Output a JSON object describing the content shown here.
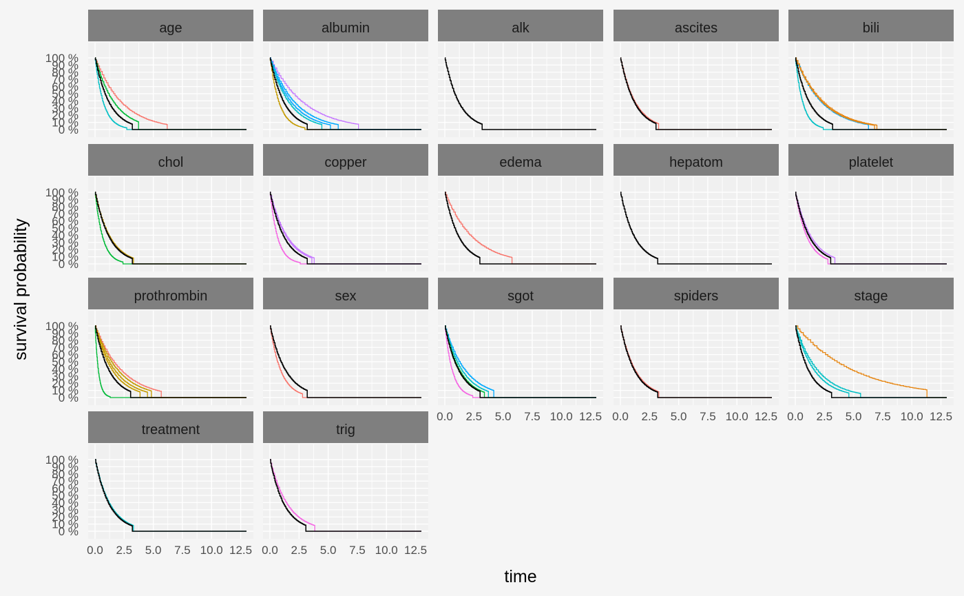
{
  "chart_data": {
    "type": "line",
    "subtype": "stepped survival curves, faceted by variable",
    "xlabel": "time",
    "ylabel": "survival probability",
    "xlim": [
      0,
      13
    ],
    "ylim": [
      0,
      1
    ],
    "x_ticks": [
      "0.0",
      "2.5",
      "5.0",
      "7.5",
      "10.0",
      "12.5"
    ],
    "y_ticks": [
      "0 %",
      "10 %",
      "20 %",
      "30 %",
      "40 %",
      "50 %",
      "60 %",
      "70 %",
      "80 %",
      "90 %",
      "100 %"
    ],
    "grid": true,
    "legend": "none",
    "colors": {
      "background": "#f5f5f5",
      "panel": "#f0f0f0",
      "grid": "#ffffff",
      "strip": "#7f7f7f",
      "baseline": "#000000"
    },
    "facets": [
      {
        "label": "age",
        "curves": [
          {
            "color": "#000000",
            "x50": 0.85,
            "end": 3.2
          },
          {
            "color": "#f8766d",
            "x50": 1.6,
            "end": 6.2
          },
          {
            "color": "#00ba38",
            "x50": 1.15,
            "end": 4.0
          },
          {
            "color": "#00bfc4",
            "x50": 0.5,
            "end": 2.8
          }
        ]
      },
      {
        "label": "albumin",
        "curves": [
          {
            "color": "#000000",
            "x50": 0.85,
            "end": 3.2
          },
          {
            "color": "#c49a00",
            "x50": 0.55,
            "end": 3.0
          },
          {
            "color": "#c77cff",
            "x50": 2.0,
            "end": 7.6
          },
          {
            "color": "#00a9ff",
            "x50": 1.5,
            "end": 6.0
          },
          {
            "color": "#00a9ff",
            "x50": 1.3,
            "end": 5.2
          },
          {
            "color": "#00bfc4",
            "x50": 1.15,
            "end": 4.6
          }
        ]
      },
      {
        "label": "alk",
        "curves": [
          {
            "color": "#000000",
            "x50": 0.85,
            "end": 3.2
          }
        ]
      },
      {
        "label": "ascites",
        "curves": [
          {
            "color": "#000000",
            "x50": 0.85,
            "end": 3.2
          },
          {
            "color": "#f8766d",
            "x50": 0.9,
            "end": 3.3
          }
        ]
      },
      {
        "label": "bili",
        "curves": [
          {
            "color": "#000000",
            "x50": 0.85,
            "end": 3.2
          },
          {
            "color": "#00bfc4",
            "x50": 0.45,
            "end": 2.4
          },
          {
            "color": "#00a9ff",
            "x50": 1.6,
            "end": 6.6
          },
          {
            "color": "#e68613",
            "x50": 1.65,
            "end": 6.8
          },
          {
            "color": "#e68613",
            "x50": 1.72,
            "end": 7.0
          }
        ]
      },
      {
        "label": "chol",
        "curves": [
          {
            "color": "#000000",
            "x50": 0.85,
            "end": 3.2
          },
          {
            "color": "#00ba38",
            "x50": 0.45,
            "end": 2.4
          },
          {
            "color": "#c49a00",
            "x50": 0.9,
            "end": 3.3
          }
        ]
      },
      {
        "label": "copper",
        "curves": [
          {
            "color": "#000000",
            "x50": 0.85,
            "end": 3.2
          },
          {
            "color": "#f564e3",
            "x50": 0.45,
            "end": 2.6
          },
          {
            "color": "#c77cff",
            "x50": 1.05,
            "end": 3.8
          },
          {
            "color": "#c77cff",
            "x50": 1.0,
            "end": 3.6
          }
        ]
      },
      {
        "label": "edema",
        "curves": [
          {
            "color": "#000000",
            "x50": 0.85,
            "end": 3.2
          },
          {
            "color": "#f8766d",
            "x50": 1.65,
            "end": 6.0
          }
        ]
      },
      {
        "label": "hepatom",
        "curves": [
          {
            "color": "#000000",
            "x50": 0.85,
            "end": 3.2
          }
        ]
      },
      {
        "label": "platelet",
        "curves": [
          {
            "color": "#000000",
            "x50": 0.85,
            "end": 3.2
          },
          {
            "color": "#f564e3",
            "x50": 0.7,
            "end": 2.8
          },
          {
            "color": "#c77cff",
            "x50": 0.95,
            "end": 3.4
          }
        ]
      },
      {
        "label": "prothrombin",
        "curves": [
          {
            "color": "#000000",
            "x50": 0.85,
            "end": 3.2
          },
          {
            "color": "#00ba38",
            "x50": 0.2,
            "end": 1.3
          },
          {
            "color": "#f8766d",
            "x50": 1.6,
            "end": 5.8
          },
          {
            "color": "#c49a00",
            "x50": 1.4,
            "end": 5.0
          },
          {
            "color": "#c49a00",
            "x50": 1.2,
            "end": 4.5
          },
          {
            "color": "#c49a00",
            "x50": 1.05,
            "end": 4.1
          }
        ]
      },
      {
        "label": "sex",
        "curves": [
          {
            "color": "#000000",
            "x50": 0.95,
            "end": 3.4
          },
          {
            "color": "#f8766d",
            "x50": 0.65,
            "end": 2.8
          }
        ]
      },
      {
        "label": "sgot",
        "curves": [
          {
            "color": "#000000",
            "x50": 0.85,
            "end": 3.2
          },
          {
            "color": "#f564e3",
            "x50": 0.45,
            "end": 2.4
          },
          {
            "color": "#00a9ff",
            "x50": 1.25,
            "end": 4.4
          },
          {
            "color": "#00bfc4",
            "x50": 1.05,
            "end": 3.9
          },
          {
            "color": "#00ba38",
            "x50": 0.9,
            "end": 3.4
          }
        ]
      },
      {
        "label": "spiders",
        "curves": [
          {
            "color": "#000000",
            "x50": 0.85,
            "end": 3.2
          },
          {
            "color": "#f8766d",
            "x50": 0.9,
            "end": 3.3
          }
        ]
      },
      {
        "label": "stage",
        "curves": [
          {
            "color": "#000000",
            "x50": 0.8,
            "end": 3.2
          },
          {
            "color": "#00bfc4",
            "x50": 1.35,
            "end": 5.6
          },
          {
            "color": "#00bfc4",
            "x50": 1.15,
            "end": 4.6
          },
          {
            "color": "#e68613",
            "x50": 3.5,
            "end": 11.3
          }
        ]
      },
      {
        "label": "treatment",
        "curves": [
          {
            "color": "#000000",
            "x50": 0.85,
            "end": 3.2
          },
          {
            "color": "#00bfc4",
            "x50": 0.9,
            "end": 3.3
          }
        ]
      },
      {
        "label": "trig",
        "curves": [
          {
            "color": "#000000",
            "x50": 0.85,
            "end": 3.2
          },
          {
            "color": "#f564e3",
            "x50": 1.05,
            "end": 3.9
          }
        ]
      }
    ]
  }
}
